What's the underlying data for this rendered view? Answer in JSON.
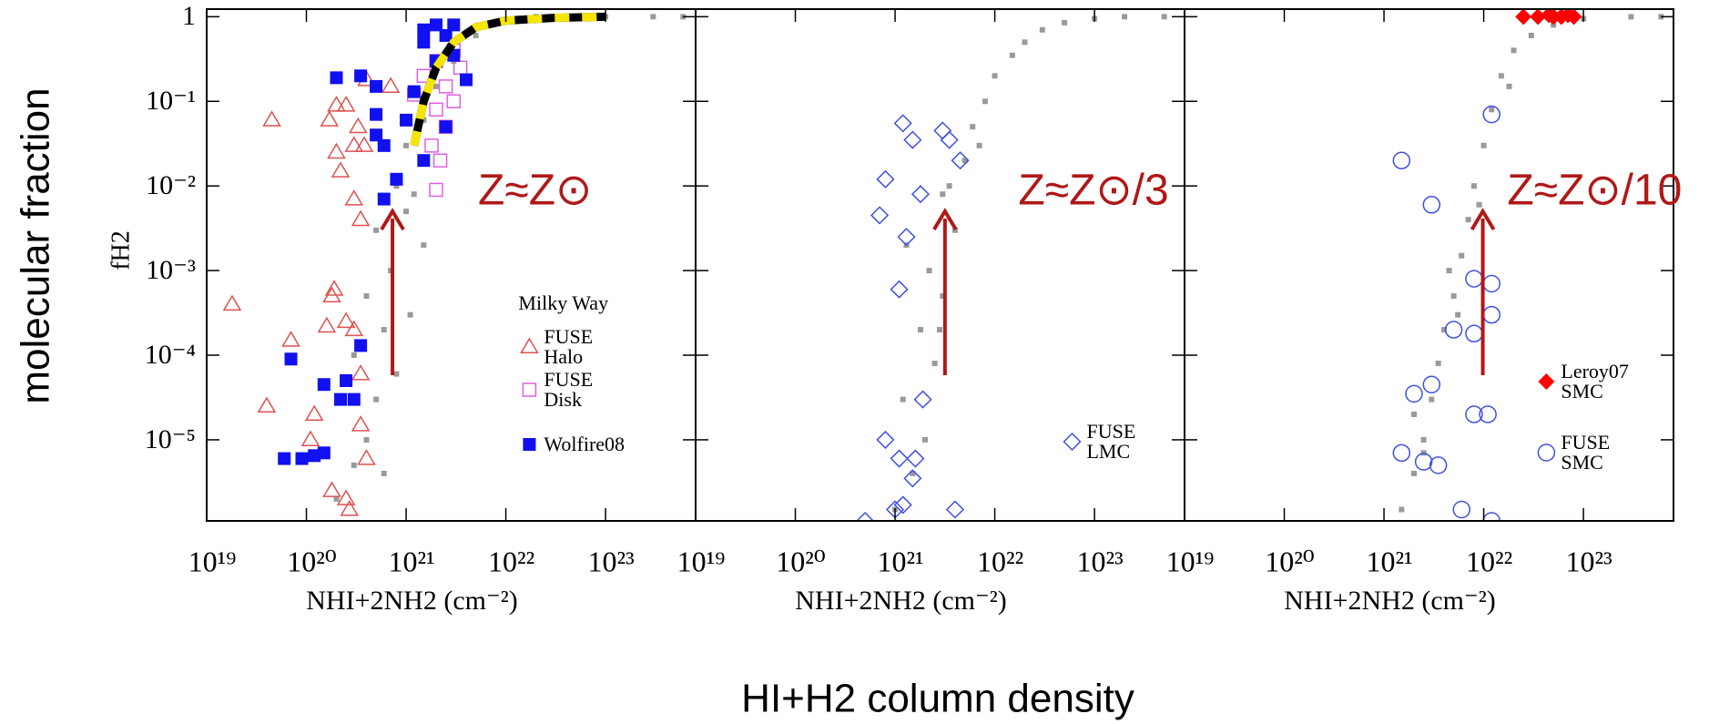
{
  "figure": {
    "ylabel": "molecular  fraction",
    "xlabel": "HI+H2 column density"
  },
  "chart_data": [
    {
      "type": "scatter",
      "xscale": "log",
      "yscale": "log",
      "ylabel": "fH2",
      "xlabel": "NHI+2NH2 (cm⁻²)",
      "xlim": [
        1e+19,
        8e+23
      ],
      "ylim": [
        1.1e-06,
        1.23
      ],
      "xticks": [
        {
          "value": 1e+19,
          "label": "10¹⁹"
        },
        {
          "value": 1e+20,
          "label": "10²⁰"
        },
        {
          "value": 1e+21,
          "label": "10²¹"
        },
        {
          "value": 1e+22,
          "label": "10²²"
        },
        {
          "value": 1e+23,
          "label": "10²³"
        }
      ],
      "yticks": [
        1,
        {
          "value": 0.1,
          "label": "10⁻¹"
        },
        {
          "value": 0.01,
          "label": "10⁻²"
        },
        {
          "value": 0.001,
          "label": "10⁻³"
        },
        {
          "value": 0.0001,
          "label": "10⁻⁴"
        },
        {
          "value": 1e-05,
          "label": "10⁻⁵"
        }
      ],
      "ytick_labels": true,
      "annotation": "Z≈Z⊙",
      "legend": "lower right",
      "legend_title": "Milky Way",
      "series": [
        {
          "marker": "dot",
          "color": "#9a9a9a",
          "x": [
            2e+20,
            3e+20,
            4e+20,
            5e+20,
            3e+20,
            6e+20,
            4e+20,
            7e+20,
            5e+20,
            1e+21,
            8e+20,
            1.2e+21,
            1e+21,
            1.5e+21,
            2e+21,
            3e+21,
            5e+21,
            1e+22,
            2e+22,
            5e+22,
            1e+23,
            3e+23,
            6e+23,
            1.5e+21,
            6e+20,
            1.1e+21,
            8e+20
          ],
          "values": [
            2e-06,
            5e-06,
            1e-05,
            3e-05,
            0.0001,
            0.0002,
            0.0005,
            0.001,
            0.003,
            0.005,
            0.01,
            0.008,
            0.03,
            0.06,
            0.15,
            0.3,
            0.6,
            0.9,
            1,
            1,
            1,
            1,
            1,
            0.002,
            4e-06,
            0.0003,
            6e-05
          ]
        },
        {
          "name": "FUSE Halo",
          "marker": "triangle",
          "color": "#e05050",
          "x": [
            4.5e+19,
            1.8e+19,
            7e+19,
            4e+19,
            1.1e+20,
            1.2e+20,
            2e+20,
            1.7e+20,
            2.5e+20,
            3.3e+20,
            3e+20,
            3.8e+20,
            2e+20,
            2.2e+20,
            3e+20,
            3.5e+20,
            1.8e+20,
            1.9e+20,
            1.6e+20,
            2.5e+20,
            3e+20,
            3.5e+20,
            3.5e+20,
            4e+20,
            2.5e+20,
            2.7e+20,
            1.8e+20,
            4e+20,
            7e+20
          ],
          "values": [
            0.06,
            0.0004,
            0.00015,
            2.5e-05,
            1e-05,
            2e-05,
            0.09,
            0.06,
            0.09,
            0.05,
            0.03,
            0.03,
            0.025,
            0.015,
            0.007,
            0.004,
            0.0005,
            0.0006,
            0.00022,
            0.00025,
            0.0002,
            6e-05,
            1.5e-05,
            6e-06,
            2e-06,
            1.5e-06,
            2.5e-06,
            0.18,
            0.15
          ]
        },
        {
          "name": "FUSE Disk",
          "marker": "square-open",
          "color": "#e060e0",
          "x": [
            1.5e+21,
            2e+21,
            2.5e+21,
            3e+21,
            2e+21,
            2.5e+21,
            3e+21,
            1.8e+21,
            2.2e+21,
            3.5e+21,
            2e+21,
            1.2e+21
          ],
          "values": [
            0.2,
            0.3,
            0.15,
            0.4,
            0.08,
            0.05,
            0.1,
            0.03,
            0.02,
            0.25,
            0.009,
            0.12
          ]
        },
        {
          "name": "Wolfire08",
          "marker": "square",
          "color": "#1010f0",
          "x": [
            1.5e+21,
            2e+21,
            2.5e+21,
            3e+21,
            1.5e+21,
            2e+21,
            3e+21,
            4e+21,
            2.5e+21,
            1.5e+21,
            1e+21,
            5e+20,
            6e+20,
            5e+20,
            8e+20,
            6e+20,
            2e+20,
            3.5e+20,
            5e+20,
            1.2e+21,
            7e+19,
            3.5e+20,
            1.5e+20,
            2.5e+20,
            2.2e+20,
            3e+20,
            1.5e+20,
            1.2e+20,
            6e+19,
            9e+19
          ],
          "values": [
            0.7,
            0.8,
            0.6,
            0.8,
            0.5,
            0.3,
            0.35,
            0.18,
            0.05,
            0.02,
            0.06,
            0.07,
            0.03,
            0.04,
            0.012,
            0.007,
            0.19,
            0.2,
            0.15,
            0.13,
            9e-05,
            0.00013,
            4.5e-05,
            5e-05,
            3e-05,
            3e-05,
            7e-06,
            6.5e-06,
            6e-06,
            6e-06
          ]
        },
        {
          "marker": "curve",
          "color": "#f5e600",
          "x": [
            1.2e+21,
            1.5e+21,
            2e+21,
            3e+21,
            5e+21,
            1e+22,
            3e+22,
            1e+23
          ],
          "values": [
            0.03,
            0.1,
            0.25,
            0.5,
            0.75,
            0.9,
            0.97,
            1
          ]
        }
      ]
    },
    {
      "type": "scatter",
      "xscale": "log",
      "yscale": "log",
      "xlabel": "NHI+2NH2 (cm⁻²)",
      "xlim": [
        1e+19,
        8e+23
      ],
      "ylim": [
        1.1e-06,
        1.23
      ],
      "xticks": [
        {
          "value": 1e+19,
          "label": "10¹⁹"
        },
        {
          "value": 1e+20,
          "label": "10²⁰"
        },
        {
          "value": 1e+21,
          "label": "10²¹"
        },
        {
          "value": 1e+22,
          "label": "10²²"
        },
        {
          "value": 1e+23,
          "label": "10²³"
        }
      ],
      "yticks": [
        1,
        0.1,
        0.01,
        0.001,
        0.0001,
        1e-05
      ],
      "ytick_labels": false,
      "annotation": "Z≈Z⊙/3",
      "legend": "lower right",
      "series": [
        {
          "marker": "dot",
          "color": "#9a9a9a",
          "x": [
            1e+21,
            1.5e+21,
            2e+21,
            1.2e+21,
            2.5e+21,
            1.8e+21,
            3e+21,
            2.2e+21,
            4e+21,
            3e+21,
            5e+21,
            6e+21,
            8e+21,
            1e+22,
            1.5e+22,
            2e+22,
            3e+22,
            5e+22,
            1e+23,
            2e+23,
            5e+23,
            1.3e+21,
            2.8e+21,
            3.5e+21,
            7e+21
          ],
          "values": [
            1.5e-06,
            4e-06,
            1e-05,
            3e-05,
            8e-05,
            0.0002,
            0.0005,
            0.001,
            0.003,
            0.008,
            0.02,
            0.05,
            0.1,
            0.2,
            0.35,
            0.5,
            0.7,
            0.85,
            0.95,
            1,
            1,
            0.002,
            0.0002,
            0.01,
            0.03
          ]
        },
        {
          "name": "FUSE LMC",
          "marker": "diamond",
          "color": "#4050e0",
          "x": [
            1.2e+21,
            1.5e+21,
            3e+21,
            3.5e+21,
            4.5e+21,
            8e+20,
            7e+20,
            1.8e+21,
            1.3e+21,
            1.1e+21,
            1.9e+21,
            8e+20,
            1.6e+21,
            1.1e+21,
            1.5e+21,
            1.2e+21,
            1e+21,
            4e+21,
            5e+20
          ],
          "values": [
            0.055,
            0.035,
            0.045,
            0.035,
            0.02,
            0.012,
            0.0045,
            0.008,
            0.0025,
            0.0006,
            3e-05,
            1e-05,
            6e-06,
            6e-06,
            3.5e-06,
            1.7e-06,
            1.5e-06,
            1.5e-06,
            1.1e-06
          ]
        }
      ]
    },
    {
      "type": "scatter",
      "xscale": "log",
      "yscale": "log",
      "xlabel": "NHI+2NH2 (cm⁻²)",
      "xlim": [
        1e+19,
        8e+23
      ],
      "ylim": [
        1.1e-06,
        1.23
      ],
      "xticks": [
        {
          "value": 1e+19,
          "label": "10¹⁹"
        },
        {
          "value": 1e+20,
          "label": "10²⁰"
        },
        {
          "value": 1e+21,
          "label": "10²¹"
        },
        {
          "value": 1e+22,
          "label": "10²²"
        },
        {
          "value": 1e+23,
          "label": "10²³"
        }
      ],
      "yticks": [
        1,
        0.1,
        0.01,
        0.001,
        0.0001,
        1e-05
      ],
      "ytick_labels": false,
      "annotation": "Z≈Z⊙/10",
      "legend": "lower right",
      "series": [
        {
          "marker": "dot",
          "color": "#9a9a9a",
          "x": [
            1.5e+21,
            2e+21,
            2.5e+21,
            3e+21,
            2e+21,
            3.5e+21,
            4e+21,
            5e+21,
            6e+21,
            4.5e+21,
            7e+21,
            8e+21,
            1e+22,
            1.2e+22,
            1.5e+22,
            2e+22,
            3e+22,
            5e+22,
            1e+23,
            3e+23,
            6e+23,
            2.5e+21,
            5.5e+21,
            9e+21,
            1.8e+22
          ],
          "values": [
            1.5e-06,
            4e-06,
            1e-05,
            3e-05,
            2e-05,
            8e-05,
            0.0002,
            0.0005,
            0.0015,
            0.001,
            0.004,
            0.01,
            0.03,
            0.08,
            0.2,
            0.4,
            0.6,
            0.8,
            0.95,
            1,
            1,
            7e-06,
            0.0003,
            0.006,
            0.15
          ]
        },
        {
          "name": "Leroy07 SMC",
          "marker": "diamond-filled",
          "color": "#ff0000",
          "x": [
            2.5e+22,
            3.5e+22,
            4.5e+22,
            5e+22,
            6e+22,
            7e+22,
            8e+22
          ],
          "values": [
            1,
            1,
            1.05,
            1,
            1,
            1.05,
            1
          ]
        },
        {
          "name": "FUSE SMC",
          "marker": "circle",
          "color": "#4050e0",
          "x": [
            1.5e+21,
            1.2e+22,
            3e+21,
            8e+21,
            1.2e+22,
            1.2e+22,
            5e+21,
            8e+21,
            3e+21,
            2e+21,
            8e+21,
            1.1e+22,
            1.5e+21,
            2.5e+21,
            3.5e+21,
            6e+21,
            1.2e+22
          ],
          "values": [
            0.02,
            0.07,
            0.006,
            0.0008,
            0.0007,
            0.0003,
            0.0002,
            0.00018,
            4.5e-05,
            3.5e-05,
            2e-05,
            2e-05,
            7e-06,
            5.5e-06,
            5e-06,
            1.5e-06,
            1.1e-06
          ]
        }
      ]
    }
  ]
}
